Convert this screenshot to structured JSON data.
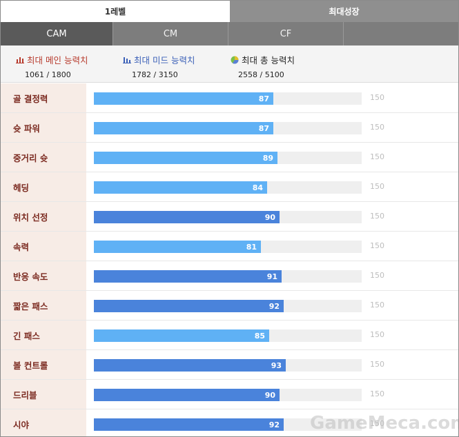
{
  "top_tabs": [
    {
      "label": "1레벨",
      "active": true
    },
    {
      "label": "최대성장",
      "active": false
    }
  ],
  "position_tabs": [
    {
      "label": "CAM",
      "active": true
    },
    {
      "label": "CM",
      "active": false
    },
    {
      "label": "CF",
      "active": false
    },
    {
      "label": "",
      "active": false
    }
  ],
  "summary": [
    {
      "label": "최대 메인 능력치",
      "value": "1061 / 1800",
      "color": "#b73a2c",
      "icon": "bar-chart-icon"
    },
    {
      "label": "최대 미드 능력치",
      "value": "1782 / 3150",
      "color": "#3a5fb7",
      "icon": "bar-chart-icon"
    },
    {
      "label": "최대 총 능력치",
      "value": "2558 / 5100",
      "color": "#222222",
      "icon": "pie-chart-icon"
    }
  ],
  "colors": {
    "main_stat_bar": "#4a83db",
    "normal_stat_bar": "#5fb1f5",
    "label_bg": "#f7ece6",
    "label_text": "#7b2a20"
  },
  "stat_max": 150,
  "stats": [
    {
      "name": "골 결정력",
      "value": 87,
      "main": false
    },
    {
      "name": "슛 파워",
      "value": 87,
      "main": false
    },
    {
      "name": "중거리 슛",
      "value": 89,
      "main": false
    },
    {
      "name": "헤딩",
      "value": 84,
      "main": false
    },
    {
      "name": "위치 선정",
      "value": 90,
      "main": true
    },
    {
      "name": "속력",
      "value": 81,
      "main": false
    },
    {
      "name": "반응 속도",
      "value": 91,
      "main": true
    },
    {
      "name": "짧은 패스",
      "value": 92,
      "main": true
    },
    {
      "name": "긴 패스",
      "value": 85,
      "main": false
    },
    {
      "name": "볼 컨트롤",
      "value": 93,
      "main": true
    },
    {
      "name": "드리블",
      "value": 90,
      "main": true
    },
    {
      "name": "시야",
      "value": 92,
      "main": true
    }
  ],
  "watermark": "GameMeca.com"
}
